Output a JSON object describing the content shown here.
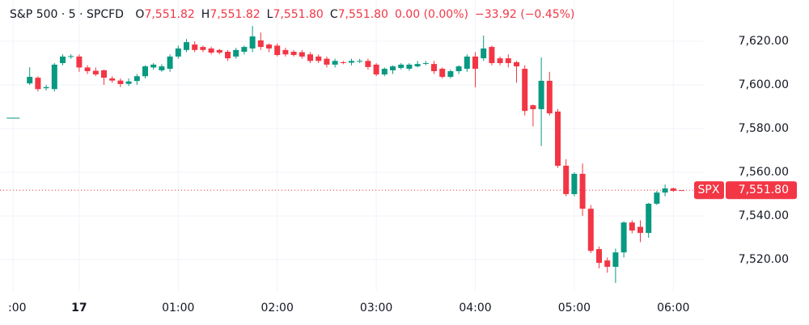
{
  "chart_data": {
    "type": "candlestick",
    "header": {
      "symbol": "S&P 500 · 5 · SPCFD",
      "items": [
        {
          "key": "O",
          "value": "7,551.82"
        },
        {
          "key": "H",
          "value": "7,551.82"
        },
        {
          "key": "L",
          "value": "7,551.80"
        },
        {
          "key": "C",
          "value": "7,551.80"
        }
      ],
      "change": "0.00 (0.00%)",
      "day_change": "−33.92 (−0.45%)"
    },
    "categories": [
      ":00",
      null,
      null,
      null,
      null,
      null,
      null,
      null,
      "17",
      null,
      null,
      null,
      null,
      null,
      null,
      null,
      null,
      null,
      null,
      null,
      "01:00",
      null,
      null,
      null,
      null,
      null,
      null,
      null,
      null,
      null,
      null,
      null,
      "02:00",
      null,
      null,
      null,
      null,
      null,
      null,
      null,
      null,
      null,
      null,
      null,
      "03:00",
      null,
      null,
      null,
      null,
      null,
      null,
      null,
      null,
      null,
      null,
      null,
      "04:00",
      null,
      null,
      null,
      null,
      null,
      null,
      null,
      null,
      null,
      null,
      null,
      "05:00",
      null,
      null,
      null,
      null,
      null,
      null,
      null,
      null,
      null,
      null,
      null,
      "06:00",
      null
    ],
    "open": [
      7585,
      null,
      7600.7,
      7603.3,
      7598.5,
      7598.1,
      7610,
      7613,
      7613,
      7608,
      7606.5,
      7606.7,
      7603,
      7602,
      7600.5,
      7601.8,
      7604,
      7608,
      7606.7,
      7607.4,
      7613,
      7616,
      7618.5,
      7617.4,
      7616.7,
      7616,
      7615.2,
      7613,
      7615.2,
      7616.7,
      7620.4,
      7618.5,
      7618,
      7616,
      7615.2,
      7615,
      7614,
      7613,
      7612,
      7609.3,
      7610.4,
      7610.2,
      7610.8,
      7611,
      7609.3,
      7604.8,
      7606.7,
      7607.8,
      7607.4,
      7608.5,
      7610,
      7609.6,
      7607.4,
      7603.7,
      7606.3,
      7607.4,
      7613,
      7612.2,
      7617.4,
      7612.2,
      7612.2,
      7610.4,
      7607.4,
      7590.7,
      7588.9,
      7601.9,
      7587.8,
      7563,
      7550,
      7559.3,
      7543.3,
      7524.8,
      7519.6,
      7516.7,
      7523.3,
      7537,
      7535,
      7532.2,
      7545.6,
      7550.7,
      7552.6,
      7551.82
    ],
    "high": [
      7585,
      null,
      7608.1,
      7604,
      7600,
      7610,
      7614,
      7614,
      7614,
      7609,
      7608,
      7607,
      7604,
      7603,
      7603,
      7605,
      7609,
      7610,
      7609.5,
      7614,
      7618,
      7621,
      7620,
      7618,
      7617.5,
      7616.5,
      7616,
      7617,
      7618,
      7627,
      7624,
      7619,
      7619,
      7617,
      7616,
      7616,
      7615,
      7614,
      7613,
      7612,
      7611,
      7612,
      7612,
      7612,
      7610,
      7608,
      7609,
      7610,
      7610,
      7611,
      7611,
      7611,
      7608,
      7607,
      7609,
      7614,
      7615,
      7622.6,
      7618,
      7613,
      7614,
      7611,
      7609,
      7591,
      7612.6,
      7606,
      7589,
      7566,
      7560,
      7564,
      7545,
      7526,
      7521,
      7525,
      7537.5,
      7538,
      7538,
      7546,
      7551.5,
      7554.4,
      7553,
      7551.82
    ],
    "low": [
      7585,
      null,
      7600,
      7597,
      7597.5,
      7597,
      7609,
      7612,
      7606,
      7605,
      7604,
      7600,
      7601,
      7599,
      7599.5,
      7600,
      7603,
      7607,
      7606,
      7606,
      7612,
      7615,
      7615,
      7615,
      7614,
      7614,
      7611,
      7612,
      7614,
      7615,
      7616,
      7615,
      7613,
      7613,
      7613,
      7612,
      7610,
      7610,
      7608,
      7608,
      7609.5,
      7609,
      7610,
      7607,
      7604,
      7604,
      7605,
      7607,
      7606.5,
      7608,
      7609,
      7605,
      7603,
      7603,
      7605,
      7606,
      7598.9,
      7611,
      7609,
      7609,
      7608,
      7601,
      7586,
      7581,
      7572,
      7586,
      7562,
      7549,
      7549,
      7540,
      7523,
      7516,
      7514,
      7509.3,
      7521,
      7532,
      7528,
      7530,
      7545,
      7549,
      7551,
      7551.8
    ],
    "close": [
      7585,
      null,
      7603.7,
      7598.1,
      7599,
      7609.3,
      7613,
      7613.2,
      7608,
      7606.3,
      7604.8,
      7603.3,
      7602,
      7600.4,
      7601.6,
      7604,
      7608.5,
      7609.3,
      7608.5,
      7613,
      7616.7,
      7619.6,
      7616,
      7616,
      7614.8,
      7614.8,
      7612.2,
      7616,
      7617.4,
      7622.2,
      7617.4,
      7616.7,
      7613.7,
      7614,
      7613.7,
      7613,
      7611,
      7611,
      7609.3,
      7611,
      7610.2,
      7611,
      7611,
      7608.2,
      7604.8,
      7607.4,
      7608.5,
      7609.3,
      7609.3,
      7609.6,
      7610,
      7606.3,
      7603.7,
      7606.3,
      7608.5,
      7613,
      7607.4,
      7616.7,
      7610,
      7610,
      7610,
      7608.5,
      7588.1,
      7588.9,
      7601.9,
      7587,
      7563,
      7550,
      7559.3,
      7543.3,
      7524,
      7518.5,
      7516.7,
      7523.3,
      7537,
      7533.3,
      7532.2,
      7545.6,
      7550.7,
      7552.6,
      7551.5,
      7551.8
    ],
    "up_color": "#089981",
    "down_color": "#f23645",
    "ylim": [
      7505.6,
      7638.9
    ],
    "yticks": [
      {
        "value": 7520,
        "label": "7,520.00"
      },
      {
        "value": 7540,
        "label": "7,540.00"
      },
      {
        "value": 7560,
        "label": "7,560.00"
      },
      {
        "value": 7580,
        "label": "7,580.00"
      },
      {
        "value": 7600,
        "label": "7,600.00"
      },
      {
        "value": 7620,
        "label": "7,620.00"
      }
    ],
    "grid": true,
    "last_price": {
      "name": "SPX",
      "value": 7551.8,
      "label": "7,551.80"
    }
  }
}
